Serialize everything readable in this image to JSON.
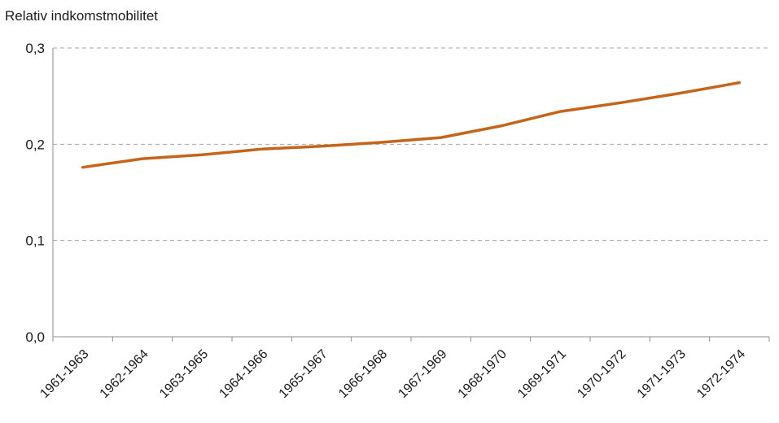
{
  "chart_data": {
    "type": "line",
    "title": "",
    "xlabel": "",
    "ylabel": "Relativ indkomstmobilitet",
    "categories": [
      "1961-1963",
      "1962-1964",
      "1963-1965",
      "1964-1966",
      "1965-1967",
      "1966-1968",
      "1967-1969",
      "1968-1970",
      "1969-1971",
      "1970-1972",
      "1971-1973",
      "1972-1974"
    ],
    "series": [
      {
        "values": [
          0.176,
          0.185,
          0.189,
          0.195,
          0.198,
          0.202,
          0.207,
          0.219,
          0.234,
          0.243,
          0.253,
          0.264
        ]
      }
    ],
    "ylim": [
      0,
      0.3
    ],
    "yticks": [
      "0,0",
      "0,1",
      "0,2",
      "0,3"
    ],
    "ytick_values": [
      0,
      0.1,
      0.2,
      0.3
    ],
    "grid": true,
    "line_color": "#c5651c"
  }
}
